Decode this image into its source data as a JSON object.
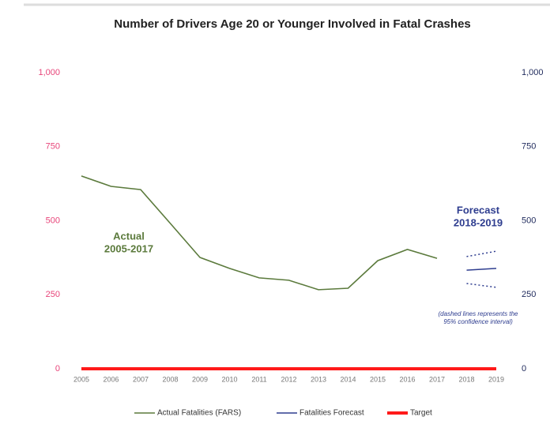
{
  "chart_data": {
    "type": "line",
    "title": "Number of Drivers Age 20 or Younger Involved in Fatal Crashes",
    "categories": [
      "2005",
      "2006",
      "2007",
      "2008",
      "2009",
      "2010",
      "2011",
      "2012",
      "2013",
      "2014",
      "2015",
      "2016",
      "2017",
      "2018",
      "2019"
    ],
    "series": [
      {
        "name": "Actual Fatalities (FARS)",
        "color": "#5b7a3c",
        "values": [
          651,
          616,
          605,
          491,
          376,
          339,
          307,
          299,
          267,
          272,
          365,
          403,
          373,
          null,
          null
        ]
      },
      {
        "name": "Fatalities Forecast",
        "color": "#2e3d8f",
        "values": [
          null,
          null,
          null,
          null,
          null,
          null,
          null,
          null,
          null,
          null,
          null,
          null,
          null,
          333,
          339
        ]
      },
      {
        "name": "Target",
        "color": "#ff1a1a",
        "values": [
          0,
          0,
          0,
          0,
          0,
          0,
          0,
          0,
          0,
          0,
          0,
          0,
          0,
          0,
          0
        ]
      }
    ],
    "confidence_interval": {
      "color": "#2e3d8f",
      "upper": [
        null,
        null,
        null,
        null,
        null,
        null,
        null,
        null,
        null,
        null,
        null,
        null,
        null,
        379,
        397
      ],
      "lower": [
        null,
        null,
        null,
        null,
        null,
        null,
        null,
        null,
        null,
        null,
        null,
        null,
        null,
        288,
        275
      ]
    },
    "annotations": {
      "actual": [
        "Actual",
        "2005-2017"
      ],
      "forecast": [
        "Forecast",
        "2018-2019"
      ],
      "note": [
        "(dashed lines represents the",
        "95% confidence interval)"
      ]
    },
    "ylim": [
      0,
      1000
    ],
    "yticks": [
      0,
      250,
      500,
      750,
      {
        "value": 1000,
        "label": "1,000"
      }
    ],
    "y2lim": [
      0,
      1000
    ],
    "y2ticks": [
      0,
      250,
      500,
      750,
      {
        "value": 1000,
        "label": "1,000"
      }
    ],
    "ytick_color": "#e8457a",
    "y2tick_color": "#1f2a5c",
    "legend": "bottom"
  }
}
